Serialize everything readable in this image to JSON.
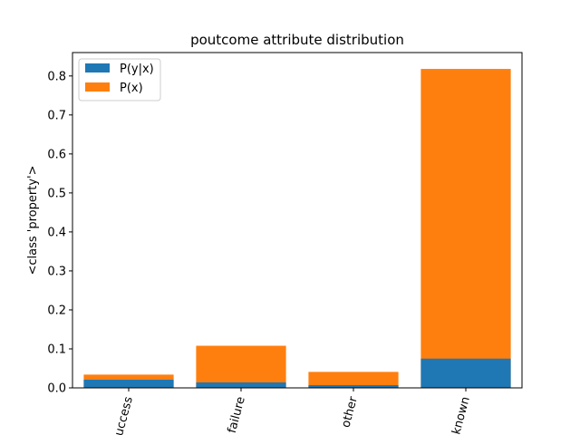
{
  "chart_data": {
    "type": "bar",
    "title": "poutcome attribute distribution",
    "xlabel": "",
    "ylabel": "<class 'property'>",
    "categories": [
      "success",
      "failure",
      "other",
      "unknown"
    ],
    "stacked": true,
    "series": [
      {
        "name": "P(y|x)",
        "color": "#1f77b4",
        "values": [
          0.021,
          0.014,
          0.007,
          0.075
        ]
      },
      {
        "name": "P(x)",
        "color": "#ff7f0e",
        "values": [
          0.034,
          0.108,
          0.041,
          0.818
        ]
      }
    ],
    "ylim": [
      0,
      0.86
    ],
    "yticks": [
      "0.0",
      "0.1",
      "0.2",
      "0.3",
      "0.4",
      "0.5",
      "0.6",
      "0.7",
      "0.8"
    ],
    "legend": "top-left",
    "grid": false
  }
}
